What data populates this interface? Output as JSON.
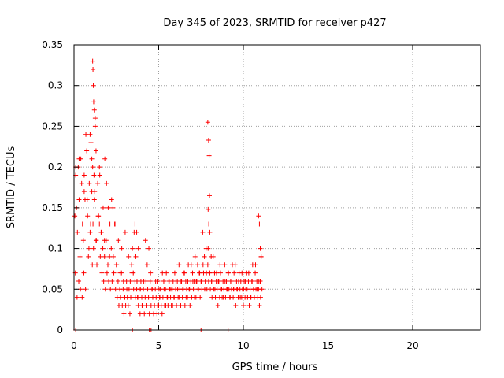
{
  "chart_data": {
    "type": "scatter",
    "title": "Day 345 of 2023, SRMTID for receiver p427",
    "xlabel": "GPS time / hours",
    "ylabel": "SRMTID / TECUs",
    "xlim": [
      0,
      24
    ],
    "ylim": [
      0,
      0.35
    ],
    "xticks": [
      0,
      5,
      10,
      15,
      20
    ],
    "xtick_labels": [
      "0",
      "5",
      "10",
      "15",
      "20"
    ],
    "yticks": [
      0,
      0.05,
      0.1,
      0.15,
      0.2,
      0.25,
      0.3,
      0.35
    ],
    "ytick_labels": [
      "0",
      "0.05",
      "0.1",
      "0.15",
      "0.2",
      "0.25",
      "0.3",
      "0.35"
    ],
    "grid": true,
    "marker": "+",
    "colors": {
      "series": "#ff0000",
      "grid": "#a0a0a0",
      "axis": "#000000"
    },
    "series": [
      {
        "name": "SRMTID",
        "x": [
          0.05,
          0.1,
          0.15,
          0.2,
          0.25,
          0.3,
          0.35,
          0.4,
          0.45,
          0.5,
          0.55,
          0.6,
          0.65,
          0.7,
          0.75,
          0.8,
          0.85,
          0.9,
          0.95,
          1.0,
          1.05,
          1.1,
          1.12,
          1.15,
          1.18,
          1.2,
          1.25,
          1.3,
          1.35,
          1.4,
          1.45,
          1.5,
          1.55,
          1.6,
          1.65,
          1.7,
          1.75,
          1.8,
          1.85,
          1.9,
          1.95,
          2.0,
          2.05,
          2.1,
          2.15,
          2.2,
          2.25,
          2.3,
          2.35,
          2.4,
          2.45,
          2.5,
          2.55,
          2.6,
          2.65,
          2.7,
          2.75,
          2.8,
          2.85,
          2.9,
          2.95,
          3.0,
          3.05,
          3.1,
          3.15,
          3.2,
          3.25,
          3.3,
          3.35,
          3.4,
          3.45,
          3.5,
          3.55,
          3.6,
          3.65,
          3.7,
          3.75,
          3.8,
          3.85,
          3.9,
          3.95,
          4.0,
          4.05,
          4.1,
          4.15,
          4.2,
          4.25,
          4.3,
          4.35,
          4.4,
          4.45,
          4.5,
          4.55,
          4.6,
          4.65,
          4.7,
          4.75,
          4.8,
          4.85,
          4.9,
          4.95,
          5.0,
          5.05,
          5.1,
          5.15,
          5.2,
          5.25,
          5.3,
          5.35,
          5.4,
          5.45,
          5.5,
          5.55,
          5.6,
          5.65,
          5.7,
          5.75,
          5.8,
          5.85,
          5.9,
          5.95,
          6.0,
          6.05,
          6.1,
          6.15,
          6.2,
          6.25,
          6.3,
          6.35,
          6.4,
          6.45,
          6.5,
          6.55,
          6.6,
          6.65,
          6.7,
          6.75,
          6.8,
          6.85,
          6.9,
          6.95,
          7.0,
          7.05,
          7.1,
          7.15,
          7.2,
          7.25,
          7.3,
          7.35,
          7.4,
          7.45,
          7.5,
          7.55,
          7.6,
          7.65,
          7.7,
          7.75,
          7.8,
          7.85,
          7.9,
          7.95,
          8.0,
          8.05,
          8.1,
          8.15,
          8.2,
          8.25,
          8.3,
          8.35,
          8.4,
          8.45,
          8.5,
          8.55,
          8.6,
          8.65,
          8.7,
          8.75,
          8.8,
          8.85,
          8.9,
          8.95,
          9.0,
          9.05,
          9.1,
          9.15,
          9.2,
          9.25,
          9.3,
          9.35,
          9.4,
          9.45,
          9.5,
          9.55,
          9.6,
          9.65,
          9.7,
          9.75,
          9.8,
          9.85,
          9.9,
          9.95,
          10.0,
          10.05,
          10.1,
          10.15,
          10.2,
          10.25,
          10.3,
          10.35,
          10.4,
          10.45,
          10.5,
          10.55,
          10.6,
          10.65,
          10.7,
          10.75,
          10.8,
          10.85,
          10.9,
          10.95,
          11.0,
          11.05,
          11.1,
          0.08,
          0.18,
          0.28,
          0.38,
          0.48,
          0.58,
          0.68,
          0.78,
          0.88,
          0.98,
          1.08,
          1.22,
          1.32,
          1.42,
          1.52,
          1.62,
          1.72,
          1.82,
          1.92,
          2.02,
          2.12,
          2.22,
          2.32,
          2.42,
          2.52,
          2.62,
          2.72,
          2.82,
          2.92,
          3.02,
          3.12,
          3.22,
          3.32,
          3.42,
          3.52,
          3.62,
          3.72,
          3.82,
          3.92,
          4.02,
          4.12,
          4.22,
          4.32,
          4.42,
          4.52,
          4.62,
          4.72,
          4.82,
          4.92,
          5.02,
          5.12,
          5.22,
          5.32,
          5.42,
          5.52,
          5.62,
          5.72,
          5.82,
          5.92,
          6.02,
          6.12,
          6.22,
          6.32,
          6.42,
          6.52,
          6.62,
          6.72,
          6.82,
          6.92,
          7.02,
          7.12,
          7.22,
          7.32,
          7.42,
          7.52,
          7.62,
          7.72,
          7.82,
          7.92,
          8.02,
          8.12,
          8.22,
          8.32,
          8.42,
          8.52,
          8.62,
          8.72,
          8.82,
          8.92,
          9.02,
          9.12,
          9.22,
          9.32,
          9.42,
          9.52,
          9.62,
          9.72,
          9.82,
          9.92,
          10.02,
          10.12,
          10.22,
          10.32,
          10.42,
          10.52,
          10.62,
          10.72,
          10.82,
          10.92,
          11.02,
          1.1,
          1.12,
          1.14,
          1.16,
          1.2,
          1.25,
          1.3,
          0.95,
          1.0,
          1.05,
          7.9,
          7.95,
          7.98,
          8.0,
          7.92,
          7.96,
          8.02,
          0.1,
          0.3,
          0.6,
          1.5,
          1.8,
          3.6,
          3.7,
          3.8,
          10.9,
          10.95,
          11.0,
          11.05,
          0.1,
          3.45,
          4.45,
          4.55,
          7.5,
          9.1
        ],
        "y": [
          0.14,
          0.19,
          0.15,
          0.12,
          0.2,
          0.16,
          0.09,
          0.21,
          0.18,
          0.13,
          0.11,
          0.19,
          0.16,
          0.24,
          0.22,
          0.14,
          0.09,
          0.18,
          0.12,
          0.23,
          0.17,
          0.2,
          0.13,
          0.1,
          0.19,
          0.16,
          0.26,
          0.11,
          0.08,
          0.18,
          0.14,
          0.2,
          0.09,
          0.12,
          0.07,
          0.1,
          0.06,
          0.09,
          0.05,
          0.11,
          0.07,
          0.08,
          0.06,
          0.09,
          0.05,
          0.1,
          0.06,
          0.15,
          0.07,
          0.13,
          0.05,
          0.08,
          0.04,
          0.06,
          0.03,
          0.05,
          0.04,
          0.07,
          0.03,
          0.05,
          0.02,
          0.04,
          0.03,
          0.06,
          0.04,
          0.03,
          0.05,
          0.02,
          0.04,
          0.08,
          0.1,
          0.07,
          0.12,
          0.06,
          0.09,
          0.05,
          0.04,
          0.03,
          0.05,
          0.02,
          0.06,
          0.04,
          0.03,
          0.05,
          0.02,
          0.04,
          0.06,
          0.03,
          0.05,
          0.04,
          0.02,
          0.06,
          0.03,
          0.05,
          0.04,
          0.02,
          0.03,
          0.05,
          0.04,
          0.02,
          0.06,
          0.03,
          0.04,
          0.05,
          0.03,
          0.02,
          0.04,
          0.06,
          0.03,
          0.05,
          0.07,
          0.04,
          0.03,
          0.06,
          0.05,
          0.04,
          0.03,
          0.05,
          0.06,
          0.04,
          0.07,
          0.05,
          0.03,
          0.06,
          0.04,
          0.08,
          0.05,
          0.03,
          0.06,
          0.04,
          0.05,
          0.07,
          0.03,
          0.06,
          0.05,
          0.04,
          0.08,
          0.05,
          0.03,
          0.06,
          0.04,
          0.07,
          0.05,
          0.06,
          0.09,
          0.04,
          0.06,
          0.08,
          0.05,
          0.07,
          0.04,
          0.06,
          0.05,
          0.12,
          0.07,
          0.09,
          0.06,
          0.1,
          0.05,
          0.08,
          0.06,
          0.07,
          0.05,
          0.09,
          0.04,
          0.06,
          0.05,
          0.07,
          0.04,
          0.06,
          0.05,
          0.03,
          0.06,
          0.04,
          0.07,
          0.05,
          0.04,
          0.06,
          0.05,
          0.08,
          0.04,
          0.06,
          0.05,
          0.07,
          0.05,
          0.04,
          0.06,
          0.05,
          0.08,
          0.04,
          0.07,
          0.05,
          0.03,
          0.06,
          0.05,
          0.04,
          0.07,
          0.05,
          0.06,
          0.04,
          0.05,
          0.03,
          0.06,
          0.04,
          0.05,
          0.07,
          0.04,
          0.06,
          0.03,
          0.05,
          0.04,
          0.06,
          0.08,
          0.05,
          0.04,
          0.07,
          0.05,
          0.06,
          0.04,
          0.05,
          0.03,
          0.06,
          0.09,
          0.05,
          0.07,
          0.04,
          0.06,
          0.05,
          0.04,
          0.07,
          0.05,
          0.16,
          0.1,
          0.13,
          0.08,
          0.17,
          0.11,
          0.14,
          0.19,
          0.12,
          0.15,
          0.21,
          0.18,
          0.15,
          0.13,
          0.16,
          0.09,
          0.13,
          0.08,
          0.11,
          0.07,
          0.1,
          0.06,
          0.12,
          0.05,
          0.09,
          0.06,
          0.07,
          0.05,
          0.04,
          0.06,
          0.04,
          0.05,
          0.03,
          0.06,
          0.11,
          0.08,
          0.1,
          0.07,
          0.05,
          0.04,
          0.06,
          0.03,
          0.05,
          0.04,
          0.07,
          0.05,
          0.03,
          0.04,
          0.06,
          0.05,
          0.03,
          0.04,
          0.06,
          0.05,
          0.04,
          0.06,
          0.05,
          0.07,
          0.04,
          0.06,
          0.05,
          0.08,
          0.06,
          0.04,
          0.06,
          0.05,
          0.07,
          0.06,
          0.08,
          0.05,
          0.07,
          0.1,
          0.07,
          0.06,
          0.09,
          0.05,
          0.07,
          0.06,
          0.08,
          0.05,
          0.04,
          0.06,
          0.05,
          0.07,
          0.04,
          0.06,
          0.05,
          0.08,
          0.05,
          0.06,
          0.04,
          0.07,
          0.05,
          0.06,
          0.05,
          0.07,
          0.04,
          0.06,
          0.05,
          0.08,
          0.05,
          0.06,
          0.04,
          0.33,
          0.32,
          0.3,
          0.28,
          0.27,
          0.25,
          0.22,
          0.24,
          0.23,
          0.21,
          0.255,
          0.233,
          0.214,
          0.165,
          0.148,
          0.13,
          0.12,
          0.2,
          0.21,
          0.17,
          0.13,
          0.11,
          0.13,
          0.12,
          0.1,
          0.14,
          0.13,
          0.1,
          0.09,
          0.0,
          0.0,
          0.0,
          0.0,
          0.0,
          0.0
        ]
      }
    ]
  }
}
